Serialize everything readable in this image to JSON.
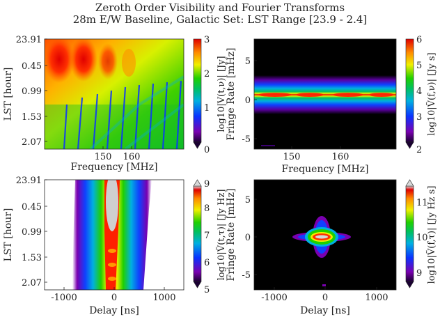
{
  "figure": {
    "title_line1": "Zeroth Order Visibility and Fourier Transforms",
    "title_line2": "28m E/W Baseline, Galactic Set: LST Range [23.9 - 2.4]"
  },
  "chart_data": [
    {
      "type": "heatmap",
      "panel": "top-left",
      "xlabel": "Frequency [MHz]",
      "ylabel": "LST [hour]",
      "xlim": [
        143.5,
        169
      ],
      "xticks": [
        150,
        160
      ],
      "yticks": [
        "23.91",
        "0.45",
        "0.99",
        "1.53",
        "2.07"
      ],
      "colorbar": {
        "label": "log10|V(t,ν)| [Jy]",
        "range": [
          0,
          3
        ],
        "ticks": [
          "0",
          "1",
          "2",
          "3"
        ],
        "extend": "min"
      },
      "features": "Bright (red, ~3) at low frequency and early LST, fading to green (~1.5) with periodic blue diagonal nulls toward higher frequency and later LST"
    },
    {
      "type": "heatmap",
      "panel": "top-right",
      "xlabel": "Frequency [MHz]",
      "ylabel": "Fringe Rate [mHz]",
      "xlim": [
        143.5,
        169
      ],
      "ylim": [
        -7,
        7
      ],
      "xticks": [
        150,
        160
      ],
      "yticks": [
        "5",
        "0",
        "-5"
      ],
      "colorbar": {
        "label": "log10|Ṽ(f,ν)| [Jy s]",
        "range": [
          2,
          6
        ],
        "ticks": [
          "2",
          "3",
          "4",
          "5",
          "6"
        ],
        "extend": "min"
      },
      "features": "Horizontal band centered at 0 mHz, peak ~6 at center, spanning roughly -2 to +2 mHz"
    },
    {
      "type": "heatmap",
      "panel": "bottom-left",
      "xlabel": "Delay [ns]",
      "ylabel": "LST [hour]",
      "xlim": [
        -1300,
        1300
      ],
      "xticks": [
        "-1000",
        "0",
        "1000"
      ],
      "yticks": [
        "23.91",
        "0.45",
        "0.99",
        "1.53",
        "2.07"
      ],
      "colorbar": {
        "label": "log10|Ṽ(t,τ)| [Jy Hz]",
        "range": [
          5,
          9
        ],
        "ticks": [
          "5",
          "6",
          "7",
          "8",
          "9"
        ],
        "extend": "both"
      },
      "features": "Vertical band centered near -50 ns, saturated (>9) at early LST, spanning about -700 to +500 ns"
    },
    {
      "type": "heatmap",
      "panel": "bottom-right",
      "xlabel": "Delay [ns]",
      "ylabel": "Fringe Rate [mHz]",
      "xlim": [
        -1300,
        1300
      ],
      "ylim": [
        -7,
        7
      ],
      "xticks": [
        "-1000",
        "0",
        "1000"
      ],
      "yticks": [
        "5",
        "0",
        "-5"
      ],
      "colorbar": {
        "label": "log10|Ṽ(f,τ)| [Jy Hz s]",
        "range": [
          8.5,
          11.5
        ],
        "ticks": [
          "9",
          "10",
          "11"
        ],
        "extend": "both"
      },
      "features": "Compact peak (~11.5) near (-50 ns, 0 mHz) with faint cross-shaped extensions"
    }
  ]
}
